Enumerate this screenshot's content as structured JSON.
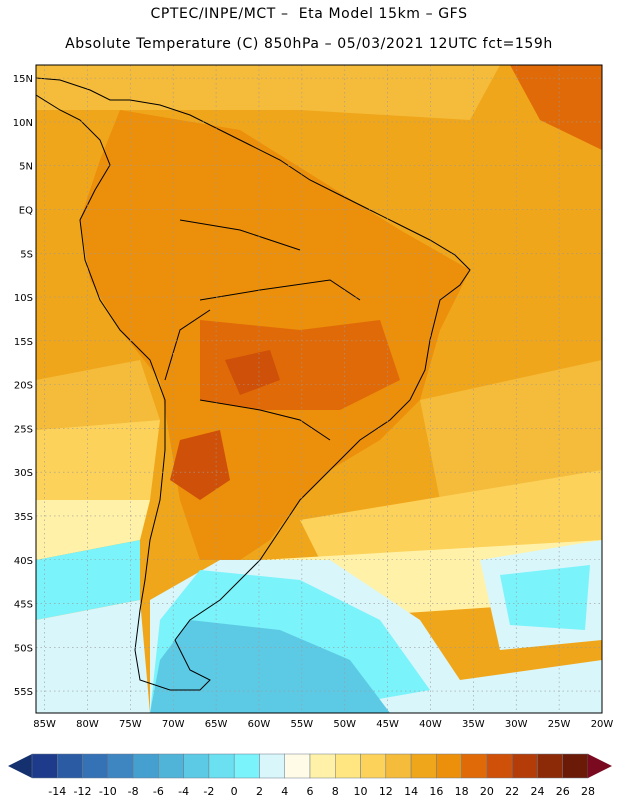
{
  "header": {
    "line1": "CPTEC/INPE/MCT –  Eta Model 15km – GFS",
    "line2": "Absolute Temperature (C) 850hPa – 05/03/2021 12UTC fct=159h"
  },
  "map": {
    "lat_labels": [
      "15N",
      "10N",
      "5N",
      "EQ",
      "5S",
      "10S",
      "15S",
      "20S",
      "25S",
      "30S",
      "35S",
      "40S",
      "45S",
      "50S",
      "55S"
    ],
    "lon_labels": [
      "85W",
      "80W",
      "75W",
      "70W",
      "65W",
      "60W",
      "55W",
      "50W",
      "45W",
      "40W",
      "35W",
      "30W",
      "25W",
      "20W"
    ],
    "grid": true,
    "extent_deg": {
      "lon_min": -86,
      "lon_max": -20,
      "lat_min": -57.5,
      "lat_max": 16.5
    }
  },
  "colorbar": {
    "ticks": [
      "-14",
      "-12",
      "-10",
      "-8",
      "-6",
      "-4",
      "-2",
      "0",
      "2",
      "4",
      "6",
      "8",
      "10",
      "12",
      "14",
      "16",
      "18",
      "20",
      "22",
      "24",
      "26",
      "28"
    ],
    "colors": [
      "#1e3a8a",
      "#2a5ba3",
      "#3471b5",
      "#3d86c2",
      "#45a0cf",
      "#50b4d8",
      "#5dcae5",
      "#6be0f0",
      "#7af3fb",
      "#d9f6fb",
      "#fffbe6",
      "#fff2a8",
      "#ffe680",
      "#fcd25a",
      "#f5bb3a",
      "#f0a61b",
      "#ec8f0b",
      "#e06a08",
      "#cf5008",
      "#b33c08",
      "#8c2a08",
      "#6b1a08"
    ],
    "arrow_low": "#14306e",
    "arrow_high": "#7a0a20"
  }
}
